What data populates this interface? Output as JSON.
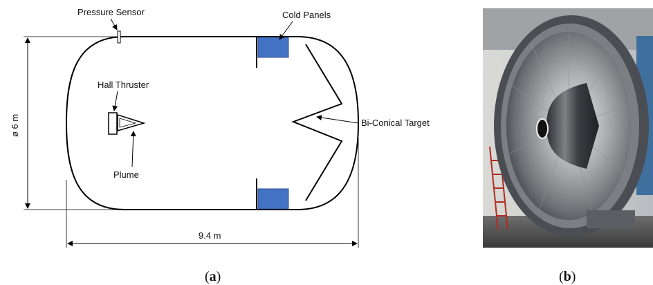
{
  "panel_a": {
    "labels": {
      "pressure_sensor": "Pressure Sensor",
      "cold_panels": "Cold Panels",
      "hall_thruster": "Hall Thruster",
      "plume": "Plume",
      "bi_conical_target": "Bi-Conical Target",
      "diameter": "ø 6 m",
      "length": "9.4 m"
    },
    "caption_open": "(",
    "caption_letter": "a",
    "caption_close": ")",
    "colors": {
      "cold_panel": "#4472C4",
      "outline": "#000000"
    }
  },
  "panel_b": {
    "caption_open": "(",
    "caption_letter": "b",
    "caption_close": ")",
    "photo_subject": "vacuum-chamber-door-with-bi-conical-target"
  }
}
